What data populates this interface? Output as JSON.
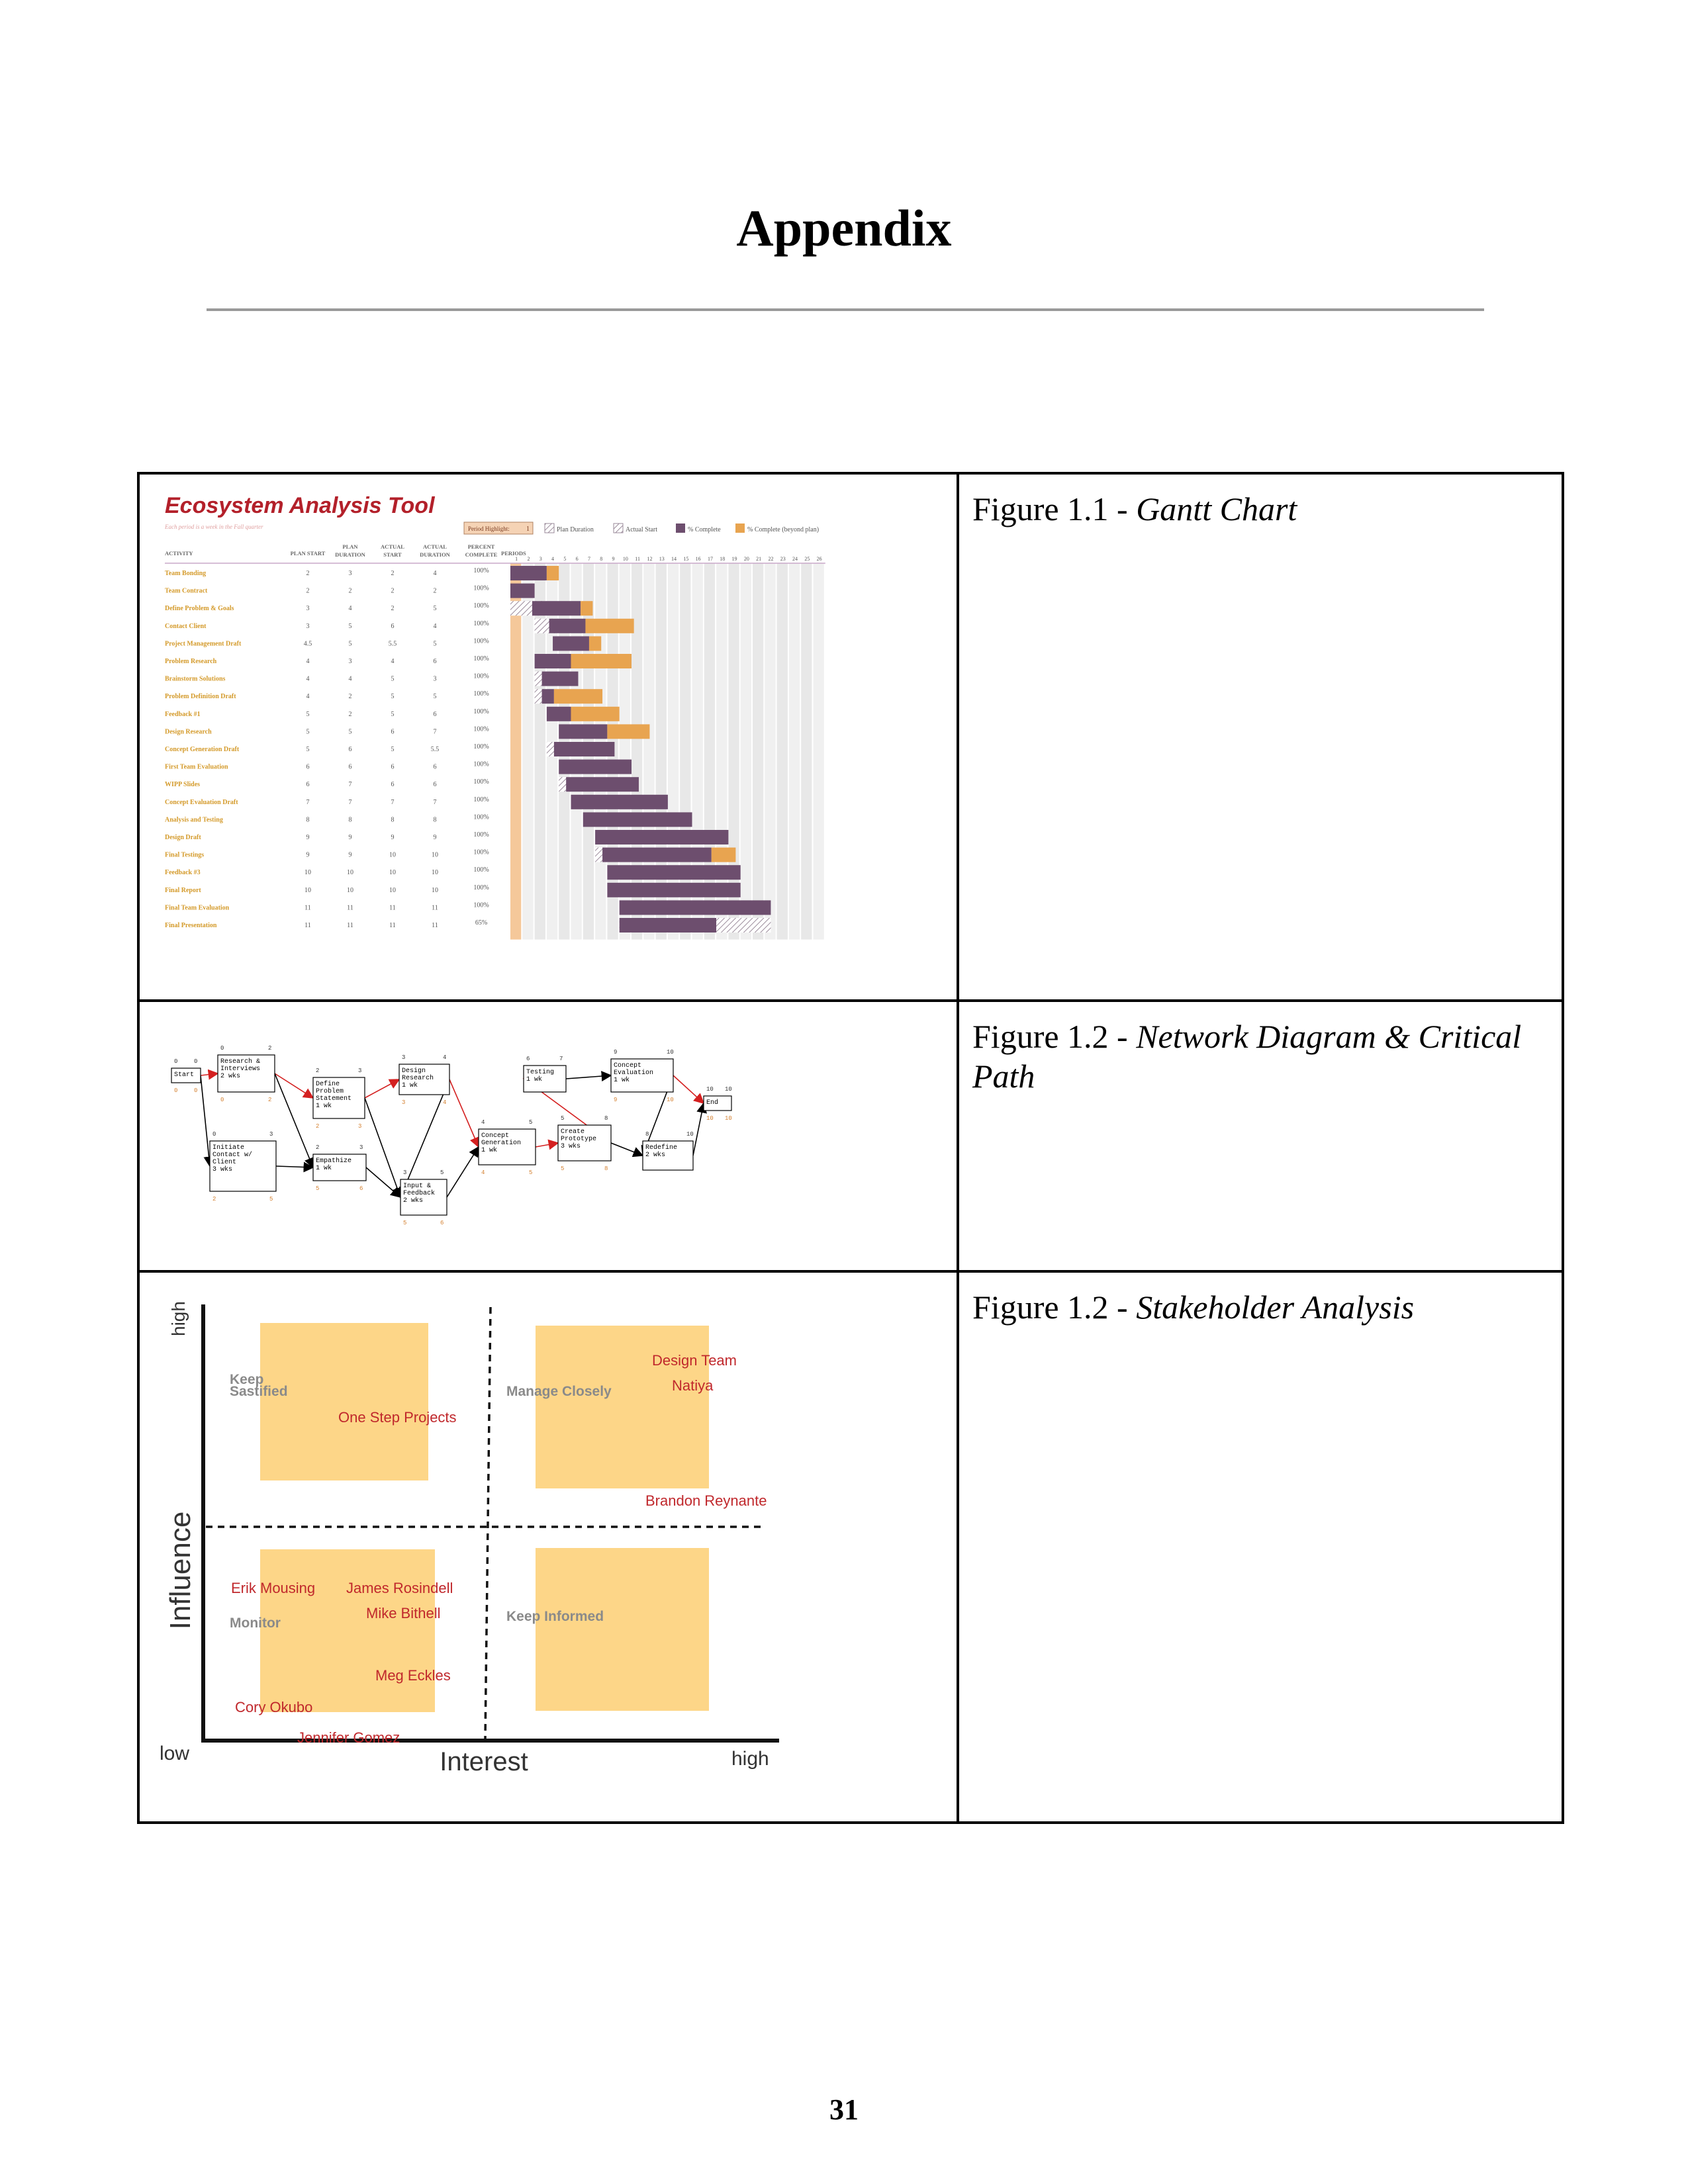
{
  "page": {
    "title": "Appendix",
    "page_number": "31"
  },
  "figures": [
    {
      "label": "Figure 1.1 - ",
      "title": "Gantt Chart"
    },
    {
      "label": "Figure 1.2 - ",
      "title": "Network Diagram & Critical Path"
    },
    {
      "label": "Figure 1.2 - ",
      "title": "Stakeholder Analysis"
    }
  ],
  "gantt": {
    "tool_title": "Ecosystem Analysis Tool",
    "subtitle": "Each period is a week in the Fall quarter",
    "period_highlight_label": "Period Highlight:",
    "period_highlight_value": "1",
    "legend": [
      "Plan Duration",
      "Actual Start",
      "% Complete",
      "% Complete (beyond plan)"
    ],
    "headers": [
      "ACTIVITY",
      "PLAN START",
      "PLAN DURATION",
      "ACTUAL START",
      "ACTUAL DURATION",
      "PERCENT COMPLETE",
      "PERIODS"
    ],
    "colors": {
      "title": "#b3202a",
      "activity": "#d49a2a",
      "complete": "#6d4e6e",
      "beyond": "#e8a450",
      "plan_hatch": "#9a8a9a",
      "highlight": "#f5c89a"
    },
    "rows": [
      {
        "activity": "Team Bonding",
        "plan_start": "2",
        "plan_duration": "3",
        "actual_start": "2",
        "actual_duration": "4",
        "percent": "100%"
      },
      {
        "activity": "Team Contract",
        "plan_start": "2",
        "plan_duration": "2",
        "actual_start": "2",
        "actual_duration": "2",
        "percent": "100%"
      },
      {
        "activity": "Define Problem & Goals",
        "plan_start": "3",
        "plan_duration": "4",
        "actual_start": "2",
        "actual_duration": "5",
        "percent": "100%"
      },
      {
        "activity": "Contact Client",
        "plan_start": "3",
        "plan_duration": "5",
        "actual_start": "6",
        "actual_duration": "4",
        "percent": "100%"
      },
      {
        "activity": "Project Management Draft",
        "plan_start": "4.5",
        "plan_duration": "5",
        "actual_start": "5.5",
        "actual_duration": "5",
        "percent": "100%"
      },
      {
        "activity": "Problem Research",
        "plan_start": "4",
        "plan_duration": "3",
        "actual_start": "4",
        "actual_duration": "6",
        "percent": "100%"
      },
      {
        "activity": "Brainstorm Solutions",
        "plan_start": "4",
        "plan_duration": "4",
        "actual_start": "5",
        "actual_duration": "3",
        "percent": "100%"
      },
      {
        "activity": "Problem Definition Draft",
        "plan_start": "4",
        "plan_duration": "2",
        "actual_start": "5",
        "actual_duration": "5",
        "percent": "100%"
      },
      {
        "activity": "Feedback #1",
        "plan_start": "5",
        "plan_duration": "2",
        "actual_start": "5",
        "actual_duration": "6",
        "percent": "100%"
      },
      {
        "activity": "Design Research",
        "plan_start": "5",
        "plan_duration": "5",
        "actual_start": "6",
        "actual_duration": "7",
        "percent": "100%"
      },
      {
        "activity": "Concept Generation Draft",
        "plan_start": "5",
        "plan_duration": "6",
        "actual_start": "5",
        "actual_duration": "5.5",
        "percent": "100%"
      },
      {
        "activity": "First Team Evaluation",
        "plan_start": "6",
        "plan_duration": "6",
        "actual_start": "6",
        "actual_duration": "6",
        "percent": "100%"
      },
      {
        "activity": "WIPP Slides",
        "plan_start": "6",
        "plan_duration": "7",
        "actual_start": "6",
        "actual_duration": "6",
        "percent": "100%"
      },
      {
        "activity": "Concept Evaluation Draft",
        "plan_start": "7",
        "plan_duration": "7",
        "actual_start": "7",
        "actual_duration": "7",
        "percent": "100%"
      },
      {
        "activity": "Analysis and Testing",
        "plan_start": "8",
        "plan_duration": "8",
        "actual_start": "8",
        "actual_duration": "8",
        "percent": "100%"
      },
      {
        "activity": "Design Draft",
        "plan_start": "9",
        "plan_duration": "9",
        "actual_start": "9",
        "actual_duration": "9",
        "percent": "100%"
      },
      {
        "activity": "Final Testings",
        "plan_start": "9",
        "plan_duration": "9",
        "actual_start": "10",
        "actual_duration": "10",
        "percent": "100%"
      },
      {
        "activity": "Feedback #3",
        "plan_start": "10",
        "plan_duration": "10",
        "actual_start": "10",
        "actual_duration": "10",
        "percent": "100%"
      },
      {
        "activity": "Final Report",
        "plan_start": "10",
        "plan_duration": "10",
        "actual_start": "10",
        "actual_duration": "10",
        "percent": "100%"
      },
      {
        "activity": "Final Team Evaluation",
        "plan_start": "11",
        "plan_duration": "11",
        "actual_start": "11",
        "actual_duration": "11",
        "percent": "100%"
      },
      {
        "activity": "Final Presentation",
        "plan_start": "11",
        "plan_duration": "11",
        "actual_start": "11",
        "actual_duration": "11",
        "percent": "65%"
      }
    ],
    "bars": [
      {
        "start": 1,
        "complete": 3,
        "beyond": 1,
        "hatch": 0
      },
      {
        "start": 1,
        "complete": 2,
        "beyond": 0,
        "hatch": 0
      },
      {
        "start": 1,
        "complete": 4,
        "beyond": 1,
        "hatch": 3
      },
      {
        "start": 3,
        "complete": 3,
        "beyond": 4,
        "hatch": 2
      },
      {
        "start": 4.5,
        "complete": 3,
        "beyond": 1,
        "hatch": 0
      },
      {
        "start": 3,
        "complete": 3,
        "beyond": 5,
        "hatch": 0
      },
      {
        "start": 3,
        "complete": 3,
        "beyond": 0,
        "hatch": 1
      },
      {
        "start": 3,
        "complete": 1,
        "beyond": 4,
        "hatch": 1
      },
      {
        "start": 4,
        "complete": 2,
        "beyond": 4,
        "hatch": 0
      },
      {
        "start": 5,
        "complete": 4,
        "beyond": 3.5,
        "hatch": 0
      },
      {
        "start": 4,
        "complete": 5,
        "beyond": 0,
        "hatch": 1
      },
      {
        "start": 5,
        "complete": 6,
        "beyond": 0,
        "hatch": 0
      },
      {
        "start": 5,
        "complete": 6,
        "beyond": 0,
        "hatch": 1
      },
      {
        "start": 6,
        "complete": 8,
        "beyond": 0,
        "hatch": 0
      },
      {
        "start": 7,
        "complete": 9,
        "beyond": 0,
        "hatch": 0
      },
      {
        "start": 8,
        "complete": 11,
        "beyond": 0,
        "hatch": 0
      },
      {
        "start": 8,
        "complete": 9,
        "beyond": 2,
        "hatch": 1
      },
      {
        "start": 9,
        "complete": 11,
        "beyond": 0,
        "hatch": 0
      },
      {
        "start": 9,
        "complete": 11,
        "beyond": 0,
        "hatch": 0
      },
      {
        "start": 10,
        "complete": 12.5,
        "beyond": 0,
        "hatch": 0
      },
      {
        "start": 10,
        "complete": 8,
        "beyond": 0,
        "hatch": 4.5
      }
    ],
    "periods": [
      "1",
      "2",
      "3",
      "4",
      "5",
      "6",
      "7",
      "8",
      "9",
      "10",
      "11",
      "12",
      "13",
      "14",
      "15",
      "16",
      "17",
      "18",
      "19",
      "20",
      "21",
      "22",
      "23",
      "24",
      "25",
      "26"
    ]
  },
  "network": {
    "nodes": [
      {
        "label": "Start",
        "sub": "",
        "es": "0",
        "ef": "0",
        "ls": "0",
        "lf": "0"
      },
      {
        "label": "Research & Interviews",
        "sub": "2 wks",
        "es": "0",
        "ef": "2",
        "ls": "0",
        "lf": "2"
      },
      {
        "label": "Initiate Contact w/ Client",
        "sub": "3 wks",
        "es": "0",
        "ef": "3",
        "ls": "2",
        "lf": "5"
      },
      {
        "label": "Define Problem Statement",
        "sub": "1 wk",
        "es": "2",
        "ef": "3",
        "ls": "2",
        "lf": "3"
      },
      {
        "label": "Empathize",
        "sub": "1 wk",
        "es": "2",
        "ef": "3",
        "ls": "5",
        "lf": "6"
      },
      {
        "label": "Design Research",
        "sub": "1 wk",
        "es": "3",
        "ef": "4",
        "ls": "3",
        "lf": "4"
      },
      {
        "label": "Input & Feedback",
        "sub": "2 wks",
        "es": "3",
        "ef": "5",
        "ls": "5",
        "lf": "6"
      },
      {
        "label": "Concept Generation",
        "sub": "1 wk",
        "es": "4",
        "ef": "5",
        "ls": "4",
        "lf": "5"
      },
      {
        "label": "Create Prototype",
        "sub": "3 wks",
        "es": "5",
        "ef": "8",
        "ls": "5",
        "lf": "8"
      },
      {
        "label": "Testing",
        "sub": "1 wk",
        "es": "6",
        "ef": "7",
        "ls": "",
        "lf": ""
      },
      {
        "label": "Concept Evaluation",
        "sub": "1 wk",
        "es": "9",
        "ef": "10",
        "ls": "9",
        "lf": "10"
      },
      {
        "label": "Redefine",
        "sub": "2 wks",
        "es": "8",
        "ef": "10",
        "ls": "",
        "lf": ""
      },
      {
        "label": "End",
        "sub": "",
        "es": "10",
        "ef": "10",
        "ls": "10",
        "lf": "10"
      }
    ]
  },
  "stakeholder": {
    "y_axis": "Influence",
    "x_axis": "Interest",
    "y_high": "high",
    "x_low": "low",
    "x_high": "high",
    "quadrants": [
      "Keep Sastified",
      "Manage Closely",
      "Monitor",
      "Keep Informed"
    ],
    "names": [
      "One Step Projects",
      "Design Team",
      "Natiya",
      "Brandon Reynante",
      "Erik Mousing",
      "James Rosindell",
      "Mike Bithell",
      "Meg Eckles",
      "Cory Okubo",
      "Jennifer Gomez"
    ],
    "colors": {
      "box": "#fdd688",
      "name": "#c0282c",
      "quad_label": "#8a8a8a"
    }
  }
}
